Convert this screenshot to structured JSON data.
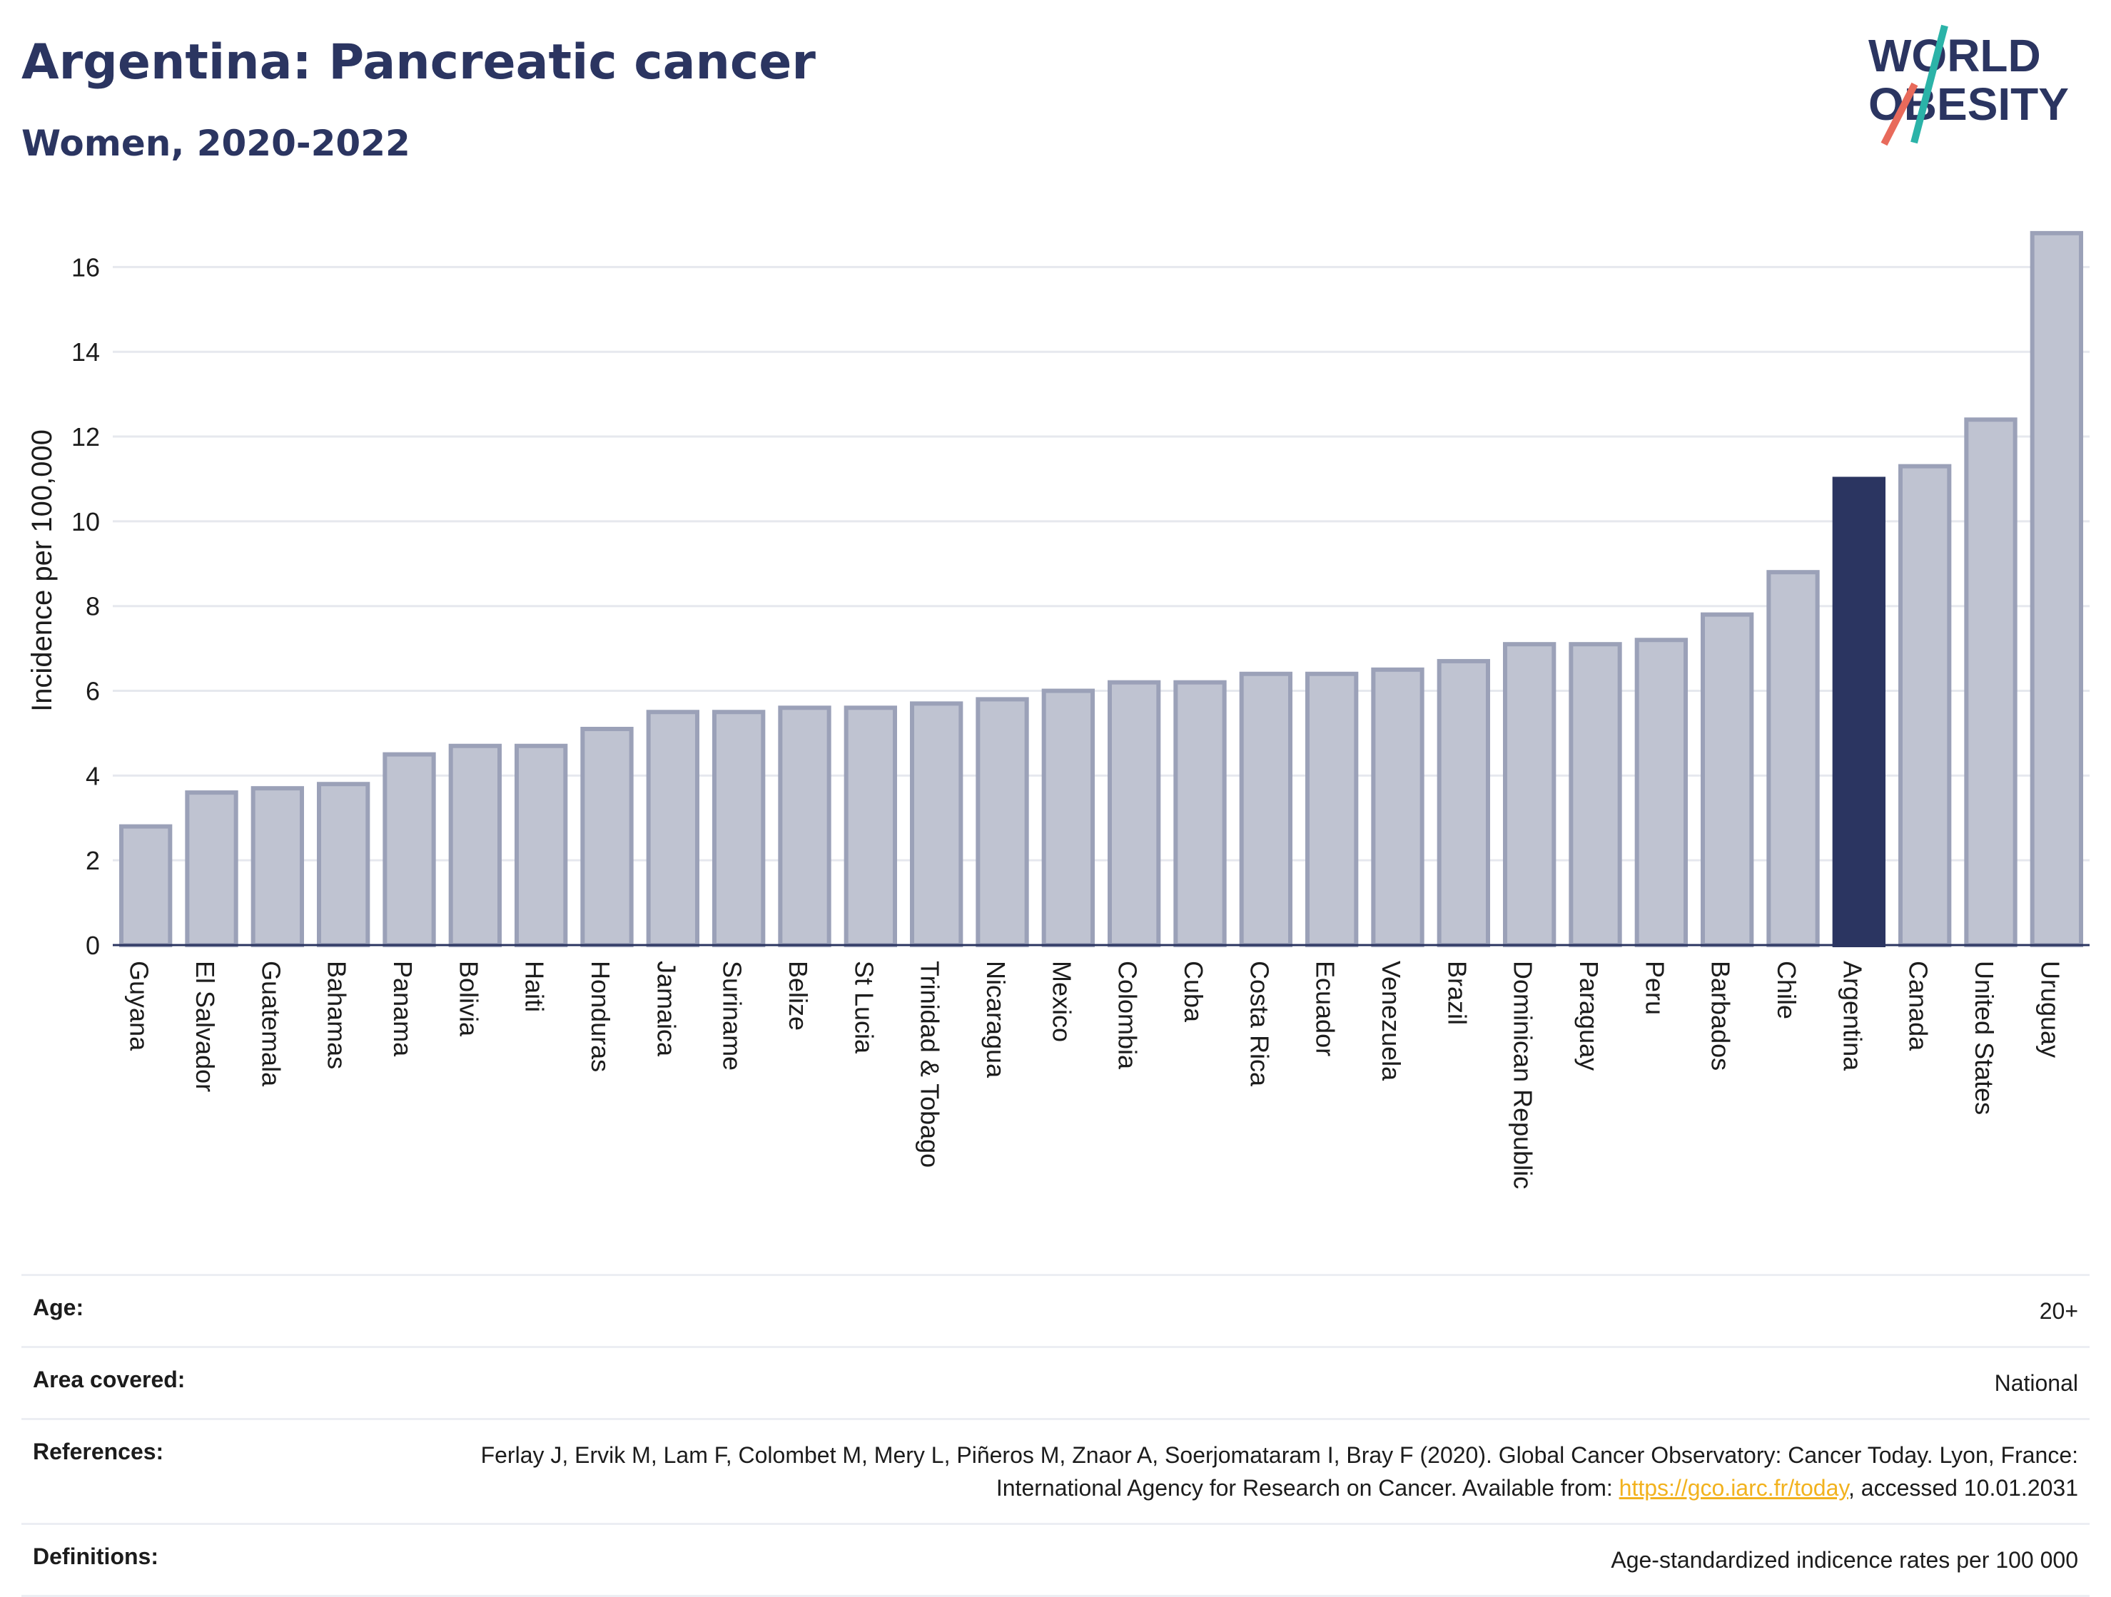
{
  "title": "Argentina: Pancreatic cancer",
  "subtitle": "Women, 2020-2022",
  "logo": {
    "line1": "WORLD",
    "line2": "OBESITY"
  },
  "colors": {
    "bar": "#bfc3d1",
    "bar_border": "#9ba1b8",
    "highlight": "#2b3561",
    "title": "#2b3561",
    "link": "#f2b21e"
  },
  "chart_data": {
    "type": "bar",
    "ylabel": "Incidence per 100,000",
    "ylim": [
      0,
      17
    ],
    "yticks": [
      0,
      2,
      4,
      6,
      8,
      10,
      12,
      14,
      16
    ],
    "grid": true,
    "highlight": "Argentina",
    "categories": [
      "Guyana",
      "El Salvador",
      "Guatemala",
      "Bahamas",
      "Panama",
      "Bolivia",
      "Haiti",
      "Honduras",
      "Jamaica",
      "Suriname",
      "Belize",
      "St Lucia",
      "Trinidad & Tobago",
      "Nicaragua",
      "Mexico",
      "Colombia",
      "Cuba",
      "Costa Rica",
      "Ecuador",
      "Venezuela",
      "Brazil",
      "Dominican Republic",
      "Paraguay",
      "Peru",
      "Barbados",
      "Chile",
      "Argentina",
      "Canada",
      "United States",
      "Uruguay"
    ],
    "values": [
      2.8,
      3.6,
      3.7,
      3.8,
      4.5,
      4.7,
      4.7,
      5.1,
      5.5,
      5.5,
      5.6,
      5.6,
      5.7,
      5.8,
      6.0,
      6.2,
      6.2,
      6.4,
      6.4,
      6.5,
      6.7,
      7.1,
      7.1,
      7.2,
      7.8,
      8.8,
      11.0,
      11.3,
      12.4,
      16.8
    ]
  },
  "meta": {
    "age_label": "Age:",
    "age_value": "20+",
    "area_label": "Area covered:",
    "area_value": "National",
    "references_label": "References:",
    "references_text": "Ferlay J, Ervik M, Lam F, Colombet M, Mery L, Piñeros M, Znaor A, Soerjomataram I, Bray F (2020). Global Cancer Observatory: Cancer Today. Lyon, France: International Agency for Research on Cancer. Available from: ",
    "references_link": "https://gco.iarc.fr/today",
    "references_suffix": ", accessed 10.01.2031",
    "definitions_label": "Definitions:",
    "definitions_value": "Age-standardized indicence rates per 100 000"
  }
}
